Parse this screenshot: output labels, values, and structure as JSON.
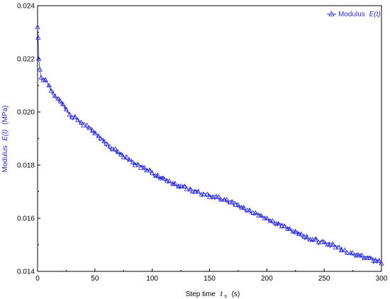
{
  "chart_data": {
    "type": "line",
    "xlabel": "Step time",
    "xlabel_symbol": "t",
    "xlabel_subscript": "s",
    "xlabel_unit": "(s)",
    "ylabel": "Modulus",
    "ylabel_symbol": "E(t)",
    "ylabel_unit": "(MPa)",
    "xlim": [
      0,
      300
    ],
    "ylim": [
      0.014,
      0.024
    ],
    "x_ticks": [
      "0",
      "50",
      "100",
      "150",
      "200",
      "250",
      "300"
    ],
    "y_ticks": [
      "0.014",
      "0.016",
      "0.018",
      "0.020",
      "0.022",
      "0.024"
    ],
    "grid": false,
    "legend_position": "top-right",
    "legend_label": "Modulus",
    "legend_symbol": "E(t)",
    "series_color": "#2a2ae0",
    "marker": "triangle-up",
    "series": [
      {
        "name": "Modulus E(t)",
        "x": [
          0,
          0.5,
          1,
          2,
          3,
          5,
          7,
          10,
          12,
          15,
          18,
          20,
          22,
          25,
          28,
          30,
          33,
          35,
          38,
          40,
          43,
          45,
          48,
          50,
          53,
          55,
          58,
          60,
          63,
          65,
          68,
          70,
          73,
          75,
          78,
          80,
          83,
          85,
          88,
          90,
          93,
          95,
          98,
          100,
          103,
          105,
          108,
          110,
          113,
          115,
          118,
          120,
          123,
          125,
          128,
          130,
          133,
          135,
          138,
          140,
          143,
          145,
          148,
          150,
          153,
          155,
          158,
          160,
          163,
          165,
          168,
          170,
          173,
          175,
          178,
          180,
          183,
          185,
          188,
          190,
          193,
          195,
          198,
          200,
          203,
          205,
          208,
          210,
          213,
          215,
          218,
          220,
          223,
          225,
          228,
          230,
          233,
          235,
          238,
          240,
          243,
          245,
          248,
          250,
          253,
          255,
          258,
          260,
          263,
          265,
          268,
          270,
          273,
          275,
          278,
          280,
          283,
          285,
          288,
          290,
          293,
          295,
          298,
          300
        ],
        "y": [
          0.0232,
          0.0228,
          0.022,
          0.0216,
          0.0213,
          0.0212,
          0.0212,
          0.021,
          0.0208,
          0.0206,
          0.0205,
          0.0204,
          0.0203,
          0.0201,
          0.0199,
          0.0198,
          0.0198,
          0.0197,
          0.0196,
          0.0195,
          0.0195,
          0.0194,
          0.0193,
          0.0192,
          0.0191,
          0.019,
          0.0189,
          0.0188,
          0.0187,
          0.0186,
          0.0186,
          0.0185,
          0.0184,
          0.0183,
          0.0183,
          0.0182,
          0.0181,
          0.018,
          0.018,
          0.0179,
          0.0179,
          0.0178,
          0.0178,
          0.0177,
          0.0176,
          0.0176,
          0.0175,
          0.0175,
          0.0174,
          0.0174,
          0.0173,
          0.0173,
          0.0172,
          0.0172,
          0.0172,
          0.0171,
          0.0171,
          0.017,
          0.017,
          0.017,
          0.0169,
          0.0169,
          0.0169,
          0.0168,
          0.0168,
          0.0168,
          0.0168,
          0.0167,
          0.0167,
          0.0167,
          0.0166,
          0.0166,
          0.0165,
          0.0165,
          0.0164,
          0.0164,
          0.0163,
          0.0163,
          0.0162,
          0.0162,
          0.0161,
          0.0161,
          0.016,
          0.016,
          0.0159,
          0.0159,
          0.0158,
          0.0158,
          0.0157,
          0.0157,
          0.0156,
          0.0156,
          0.0155,
          0.0155,
          0.0154,
          0.0154,
          0.0153,
          0.0153,
          0.0152,
          0.0152,
          0.0152,
          0.0151,
          0.0151,
          0.0151,
          0.015,
          0.015,
          0.015,
          0.0149,
          0.0149,
          0.0148,
          0.0148,
          0.0147,
          0.0147,
          0.0147,
          0.0146,
          0.0146,
          0.0146,
          0.0145,
          0.0145,
          0.0145,
          0.0144,
          0.0144,
          0.0144,
          0.0143
        ]
      }
    ]
  }
}
